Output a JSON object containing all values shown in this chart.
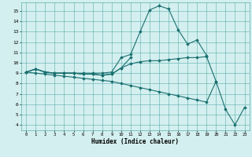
{
  "xlabel": "Humidex (Indice chaleur)",
  "bg_color": "#d4efef",
  "grid_color": "#5aadad",
  "line_color": "#1a7070",
  "xlim": [
    -0.5,
    23.5
  ],
  "ylim": [
    3.5,
    15.8
  ],
  "xticks": [
    0,
    1,
    2,
    3,
    4,
    5,
    6,
    7,
    8,
    9,
    10,
    11,
    12,
    13,
    14,
    15,
    16,
    17,
    18,
    19,
    20,
    21,
    22,
    23
  ],
  "yticks": [
    4,
    5,
    6,
    7,
    8,
    9,
    10,
    11,
    12,
    13,
    14,
    15
  ],
  "line1_y": [
    9.1,
    9.4,
    9.1,
    9.0,
    9.0,
    9.0,
    9.0,
    9.0,
    9.0,
    9.1,
    10.5,
    10.8,
    13.0,
    15.1,
    15.5,
    15.2,
    13.2,
    11.8,
    12.2,
    10.7,
    null,
    null,
    null,
    null
  ],
  "line2_y": [
    9.1,
    9.4,
    9.1,
    9.0,
    9.0,
    9.0,
    8.9,
    8.9,
    8.8,
    8.9,
    9.5,
    10.5,
    null,
    null,
    null,
    null,
    null,
    null,
    null,
    null,
    null,
    null,
    null,
    null
  ],
  "line3_y": [
    9.1,
    9.4,
    9.1,
    9.0,
    9.0,
    9.0,
    8.9,
    8.9,
    8.8,
    8.9,
    9.5,
    9.9,
    10.1,
    10.2,
    10.2,
    10.3,
    10.4,
    10.5,
    10.5,
    10.6,
    8.2,
    null,
    null,
    null
  ],
  "line4_y": [
    9.1,
    9.0,
    8.9,
    8.8,
    8.7,
    8.6,
    8.5,
    8.4,
    8.3,
    8.2,
    8.0,
    7.8,
    7.6,
    7.4,
    7.2,
    7.0,
    6.8,
    6.6,
    6.4,
    6.2,
    8.2,
    5.5,
    4.0,
    5.7
  ]
}
